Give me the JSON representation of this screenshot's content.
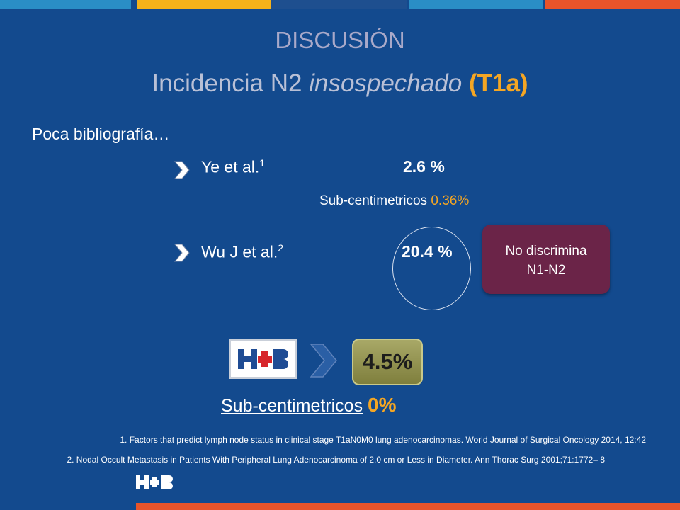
{
  "colors": {
    "background": "#134a8e",
    "accent_orange": "#f5a623",
    "box_purple": "#6b2448",
    "pct_olive": "#9a9a55",
    "bottom_bar": "#e8542a",
    "top_bar": [
      "#2a8ec6",
      "#f5b21a",
      "#1e4f8f",
      "#2a8ec6",
      "#e8542a"
    ]
  },
  "title": "DISCUSIÓN",
  "subtitle": {
    "part1": "Incidencia N2 ",
    "italic": "insospechado",
    "highlight": "(T1a)"
  },
  "lead": "Poca bibliografía…",
  "rows": [
    {
      "label": "Ye et al.",
      "ref": "1",
      "value": "2.6 %"
    },
    {
      "label": "Wu J et al.",
      "ref": "2",
      "value": "20.4 %"
    }
  ],
  "subcentimetric_1": {
    "label": "Sub-centimetricos",
    "value": "0.36%"
  },
  "no_discrimina": {
    "line1": "No discrimina",
    "line2": "N1-N2"
  },
  "hospital_result": {
    "value": "4.5%"
  },
  "subcentimetric_2": {
    "label": "Sub-centimetricos",
    "value": "0%"
  },
  "references": [
    "1. Factors that predict lymph node status in clinical stage T1aN0M0 lung adenocarcinomas. World Journal of Surgical Oncology 2014, 12:42",
    "2. Nodal Occult Metastasis in Patients With Peripheral Lung Adenocarcinoma of 2.0 cm or Less in Diameter. Ann Thorac Surg 2001;71:1772– 8"
  ],
  "icons": [
    "hospital-logo-icon",
    "chevron-right-icon",
    "big-chevron-icon",
    "footer-logo-icon"
  ]
}
